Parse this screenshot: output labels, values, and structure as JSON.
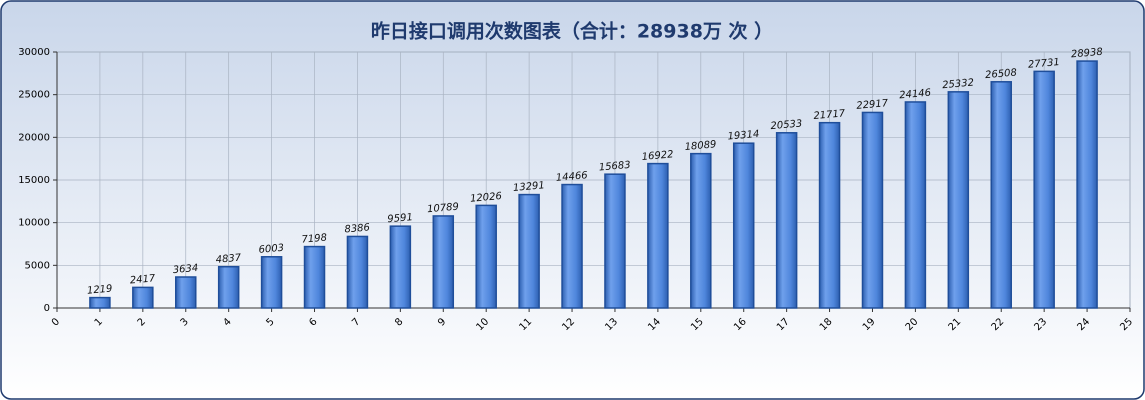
{
  "chart_data": {
    "type": "bar",
    "title": "昨日接口调用次数图表（合计：28938万 次 ）",
    "x": [
      1,
      2,
      3,
      4,
      5,
      6,
      7,
      8,
      9,
      10,
      11,
      12,
      13,
      14,
      15,
      16,
      17,
      18,
      19,
      20,
      21,
      22,
      23,
      24
    ],
    "values": [
      1219,
      2417,
      3634,
      4837,
      6003,
      7198,
      8386,
      9591,
      10789,
      12026,
      13291,
      14466,
      15683,
      16922,
      18089,
      19314,
      20533,
      21717,
      22917,
      24146,
      25332,
      26508,
      27731,
      28938
    ],
    "color": "#3d7ad6",
    "xlim": [
      0,
      25
    ],
    "xticks": [
      0,
      1,
      2,
      3,
      4,
      5,
      6,
      7,
      8,
      9,
      10,
      11,
      12,
      13,
      14,
      15,
      16,
      17,
      18,
      19,
      20,
      21,
      22,
      23,
      24,
      25
    ],
    "ylim": [
      0,
      30000
    ],
    "yticks": [
      0,
      5000,
      10000,
      15000,
      20000,
      25000,
      30000
    ],
    "grid": true
  }
}
